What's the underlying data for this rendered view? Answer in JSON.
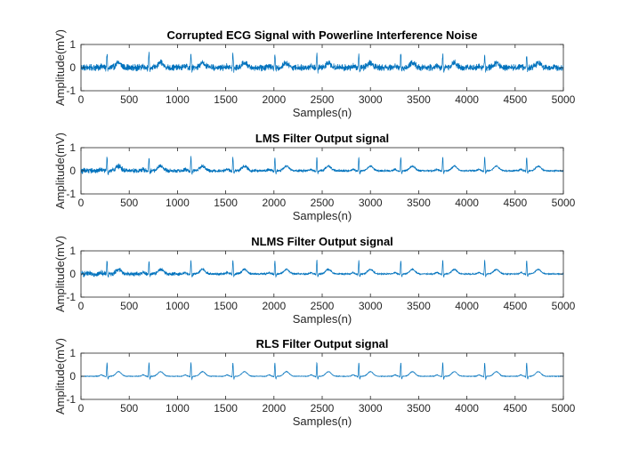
{
  "figure": {
    "colors": {
      "line": "#0072BD",
      "axis": "#262626"
    }
  },
  "chart_data": [
    {
      "type": "line",
      "title": "Corrupted ECG Signal with Powerline Interference Noise",
      "xlabel": "Samples(n)",
      "ylabel": "Amplitude(mV)",
      "xlim": [
        0,
        5000
      ],
      "ylim": [
        -1,
        1
      ],
      "xticks": [
        "0",
        "500",
        "1000",
        "1500",
        "2000",
        "2500",
        "3000",
        "3500",
        "4000",
        "4500",
        "5000"
      ],
      "yticks": [
        "-1",
        "0",
        "1"
      ],
      "series": [
        {
          "name": "ECG",
          "beat_period_samples": 435,
          "first_r_peak_sample": 270,
          "r_peak_mV": 0.6,
          "t_wave_mV": 0.2,
          "baseline_drift_mV": 0.0,
          "noise_mV": 0.1
        }
      ]
    },
    {
      "type": "line",
      "title": "LMS Filter Output signal",
      "xlabel": "Samples(n)",
      "ylabel": "Amplitude(mV)",
      "xlim": [
        0,
        5000
      ],
      "ylim": [
        -1,
        1
      ],
      "xticks": [
        "0",
        "500",
        "1000",
        "1500",
        "2000",
        "2500",
        "3000",
        "3500",
        "4000",
        "4500",
        "5000"
      ],
      "yticks": [
        "-1",
        "0",
        "1"
      ],
      "series": [
        {
          "name": "LMS output",
          "beat_period_samples": 435,
          "first_r_peak_sample": 270,
          "r_peak_mV": 0.6,
          "t_wave_mV": 0.2,
          "baseline_drift_mV": 0.0,
          "noise_mV": 0.08,
          "noise_decay_sample": 1800
        }
      ]
    },
    {
      "type": "line",
      "title": "NLMS Filter Output signal",
      "xlabel": "Samples(n)",
      "ylabel": "Amplitude(mV)",
      "xlim": [
        0,
        5000
      ],
      "ylim": [
        -1,
        1
      ],
      "xticks": [
        "0",
        "500",
        "1000",
        "1500",
        "2000",
        "2500",
        "3000",
        "3500",
        "4000",
        "4500",
        "5000"
      ],
      "yticks": [
        "-1",
        "0",
        "1"
      ],
      "series": [
        {
          "name": "NLMS output",
          "beat_period_samples": 435,
          "first_r_peak_sample": 270,
          "r_peak_mV": 0.6,
          "t_wave_mV": 0.2,
          "baseline_drift_mV": 0.0,
          "noise_mV": 0.08,
          "noise_decay_sample": 1200
        }
      ]
    },
    {
      "type": "line",
      "title": "RLS Filter Output signal",
      "xlabel": "Samples(n)",
      "ylabel": "Amplitude(mV)",
      "xlim": [
        0,
        5000
      ],
      "ylim": [
        -1,
        1
      ],
      "xticks": [
        "0",
        "500",
        "1000",
        "1500",
        "2000",
        "2500",
        "3000",
        "3500",
        "4000",
        "4500",
        "5000"
      ],
      "yticks": [
        "-1",
        "0",
        "1"
      ],
      "series": [
        {
          "name": "RLS output",
          "beat_period_samples": 435,
          "first_r_peak_sample": 270,
          "r_peak_mV": 0.6,
          "t_wave_mV": 0.2,
          "baseline_drift_mV": 0.0,
          "noise_mV": 0.01,
          "noise_decay_sample": 0
        }
      ]
    }
  ]
}
